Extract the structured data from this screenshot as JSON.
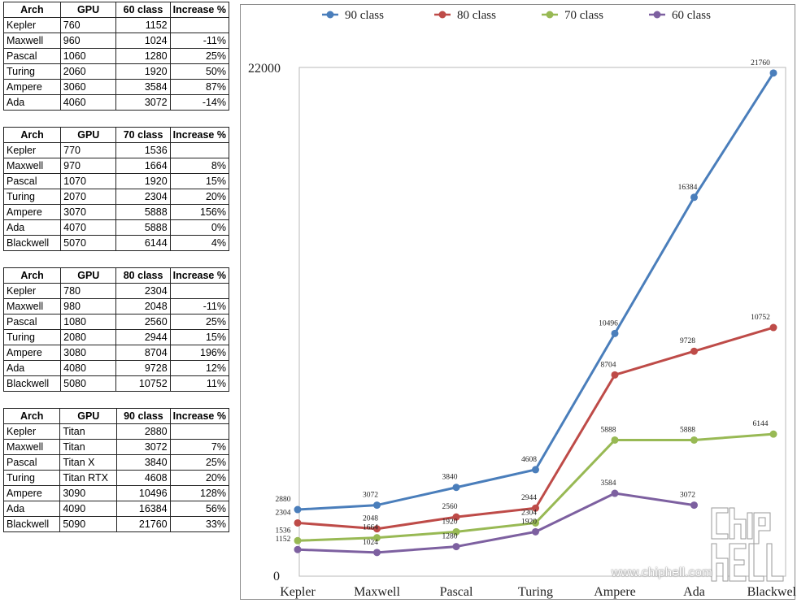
{
  "tables": [
    {
      "headers": [
        "Arch",
        "GPU",
        "60 class",
        "Increase %"
      ],
      "rows": [
        [
          "Kepler",
          "760",
          "1152",
          ""
        ],
        [
          "Maxwell",
          "960",
          "1024",
          "-11%"
        ],
        [
          "Pascal",
          "1060",
          "1280",
          "25%"
        ],
        [
          "Turing",
          "2060",
          "1920",
          "50%"
        ],
        [
          "Ampere",
          "3060",
          "3584",
          "87%"
        ],
        [
          "Ada",
          "4060",
          "3072",
          "-14%"
        ]
      ]
    },
    {
      "headers": [
        "Arch",
        "GPU",
        "70 class",
        "Increase %"
      ],
      "rows": [
        [
          "Kepler",
          "770",
          "1536",
          ""
        ],
        [
          "Maxwell",
          "970",
          "1664",
          "8%"
        ],
        [
          "Pascal",
          "1070",
          "1920",
          "15%"
        ],
        [
          "Turing",
          "2070",
          "2304",
          "20%"
        ],
        [
          "Ampere",
          "3070",
          "5888",
          "156%"
        ],
        [
          "Ada",
          "4070",
          "5888",
          "0%"
        ],
        [
          "Blackwell",
          "5070",
          "6144",
          "4%"
        ]
      ]
    },
    {
      "headers": [
        "Arch",
        "GPU",
        "80 class",
        "Increase %"
      ],
      "rows": [
        [
          "Kepler",
          "780",
          "2304",
          ""
        ],
        [
          "Maxwell",
          "980",
          "2048",
          "-11%"
        ],
        [
          "Pascal",
          "1080",
          "2560",
          "25%"
        ],
        [
          "Turing",
          "2080",
          "2944",
          "15%"
        ],
        [
          "Ampere",
          "3080",
          "8704",
          "196%"
        ],
        [
          "Ada",
          "4080",
          "9728",
          "12%"
        ],
        [
          "Blackwell",
          "5080",
          "10752",
          "11%"
        ]
      ]
    },
    {
      "headers": [
        "Arch",
        "GPU",
        "90 class",
        "Increase %"
      ],
      "rows": [
        [
          "Kepler",
          "Titan",
          "2880",
          ""
        ],
        [
          "Maxwell",
          "Titan",
          "3072",
          "7%"
        ],
        [
          "Pascal",
          "Titan X",
          "3840",
          "25%"
        ],
        [
          "Turing",
          "Titan RTX",
          "4608",
          "20%"
        ],
        [
          "Ampere",
          "3090",
          "10496",
          "128%"
        ],
        [
          "Ada",
          "4090",
          "16384",
          "56%"
        ],
        [
          "Blackwell",
          "5090",
          "21760",
          "33%"
        ]
      ]
    }
  ],
  "chart_data": {
    "type": "line",
    "categories": [
      "Kepler",
      "Maxwell",
      "Pascal",
      "Turing",
      "Ampere",
      "Ada",
      "Blackwell"
    ],
    "ylim": [
      0,
      22000
    ],
    "yticks": [
      "0",
      "22000"
    ],
    "grid": false,
    "legend_position": "top",
    "series": [
      {
        "name": "90 class",
        "color": "#4a7ebb",
        "values": [
          2880,
          3072,
          3840,
          4608,
          10496,
          16384,
          21760
        ]
      },
      {
        "name": "80 class",
        "color": "#be4b48",
        "values": [
          2304,
          2048,
          2560,
          2944,
          8704,
          9728,
          10752
        ]
      },
      {
        "name": "70 class",
        "color": "#98b954",
        "values": [
          1536,
          1664,
          1920,
          2304,
          5888,
          5888,
          6144
        ]
      },
      {
        "name": "60 class",
        "color": "#7d60a0",
        "values": [
          1152,
          1024,
          1280,
          1920,
          3584,
          3072,
          null
        ]
      }
    ]
  },
  "watermark": {
    "url": "www.chiphell.com",
    "logo_text": "chip hell",
    "logo_icon": "chiphell-logo-icon"
  }
}
